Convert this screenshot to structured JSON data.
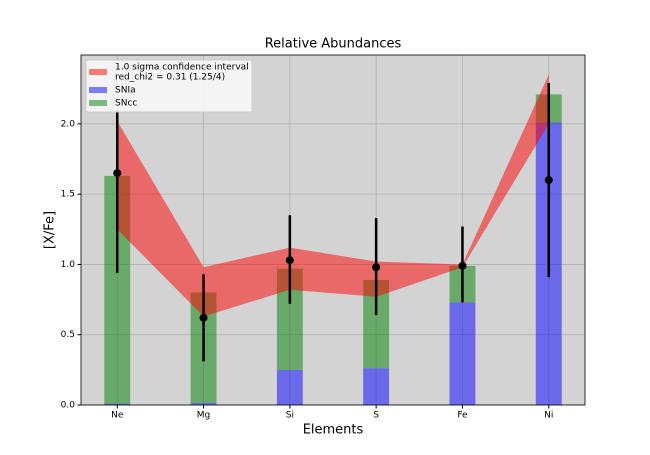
{
  "chart_data": {
    "type": "bar",
    "title": "Relative Abundances",
    "xlabel": "Elements",
    "ylabel": "[X/Fe]",
    "categories": [
      "Ne",
      "Mg",
      "Si",
      "S",
      "Fe",
      "Ni"
    ],
    "series": [
      {
        "name": "SNIa",
        "color": "#0000ff",
        "values": [
          0.01,
          0.015,
          0.25,
          0.26,
          0.73,
          2.01
        ]
      },
      {
        "name": "SNcc",
        "color": "#008000",
        "values": [
          1.62,
          0.785,
          0.72,
          0.63,
          0.26,
          0.2
        ]
      }
    ],
    "band": {
      "name": "1.0 sigma confidence interval",
      "note": "red_chi2 = 0.31 (1.25/4)",
      "color": "#ff0000",
      "upper": [
        2.02,
        0.98,
        1.12,
        1.02,
        1.0,
        2.35
      ],
      "lower": [
        1.25,
        0.63,
        0.82,
        0.77,
        0.98,
        2.0
      ]
    },
    "points": {
      "color": "#000000",
      "values": [
        1.65,
        0.62,
        1.03,
        0.98,
        0.99,
        1.6
      ],
      "err_low": [
        0.71,
        0.31,
        0.31,
        0.34,
        0.26,
        0.69
      ],
      "err_high": [
        0.45,
        0.31,
        0.32,
        0.35,
        0.28,
        0.69
      ]
    },
    "ylim": [
      0,
      2.49
    ],
    "yticks": [
      {
        "value": 0,
        "label": "0.0"
      },
      {
        "value": 0.5,
        "label": "0.5"
      },
      {
        "value": 1,
        "label": "1.0"
      },
      {
        "value": 1.5,
        "label": "1.5"
      },
      {
        "value": 2,
        "label": "2.0"
      }
    ],
    "grid": true,
    "legend": "upper left"
  }
}
